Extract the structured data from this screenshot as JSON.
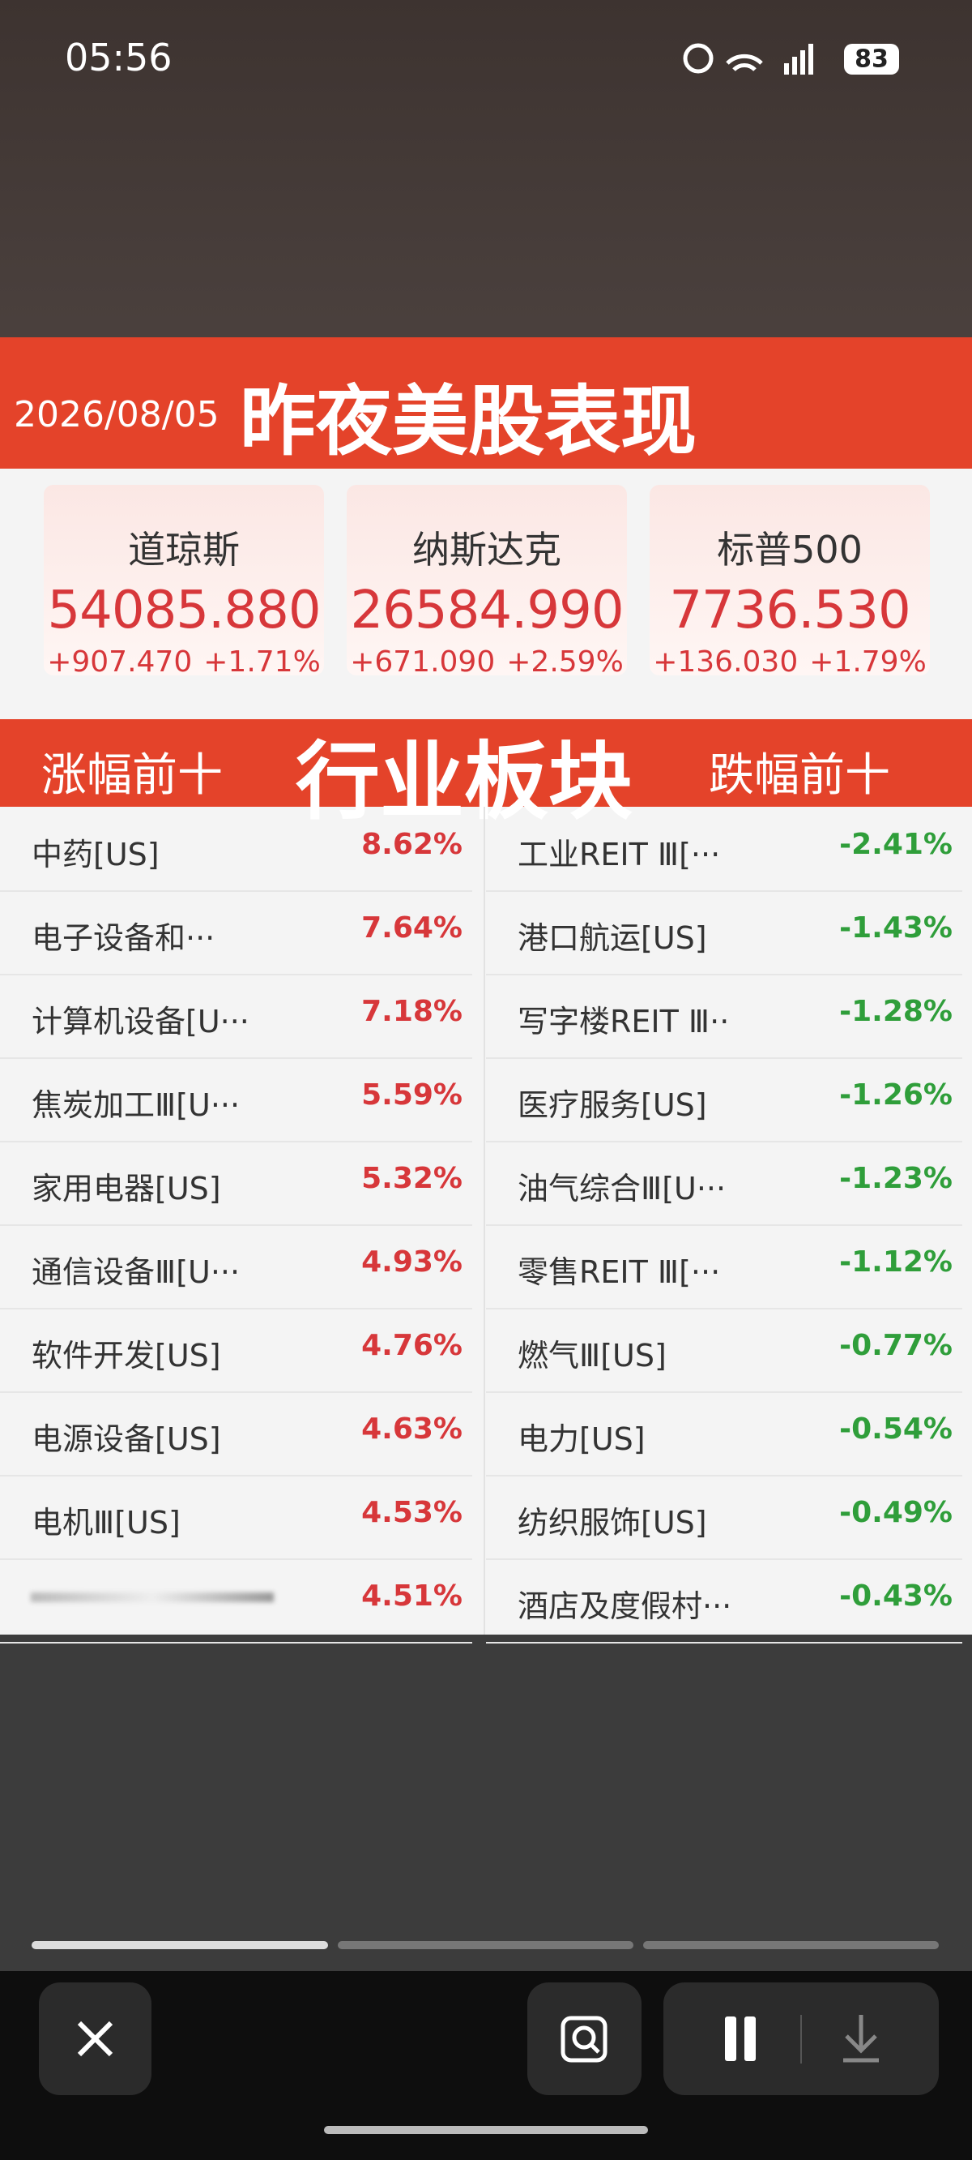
{
  "status": {
    "time": "05:56",
    "battery": "83"
  },
  "header": {
    "date": "2026/08/05",
    "title": "昨夜美股表现"
  },
  "indices": [
    {
      "name": "道琼斯",
      "value": "54085.880",
      "change": "+907.470",
      "pct": "+1.71%"
    },
    {
      "name": "纳斯达克",
      "value": "26584.990",
      "change": "+671.090",
      "pct": "+2.59%"
    },
    {
      "name": "标普500",
      "value": "7736.530",
      "change": "+136.030",
      "pct": "+1.79%"
    }
  ],
  "sector": {
    "left_title": "涨幅前十",
    "title": "行业板块",
    "right_title": "跌幅前十",
    "gainers": [
      {
        "name": "中药[US]",
        "pct": "8.62%"
      },
      {
        "name": "电子设备和···",
        "pct": "7.64%"
      },
      {
        "name": "计算机设备[U···",
        "pct": "7.18%"
      },
      {
        "name": "焦炭加工Ⅲ[U···",
        "pct": "5.59%"
      },
      {
        "name": "家用电器[US]",
        "pct": "5.32%"
      },
      {
        "name": "通信设备Ⅲ[U···",
        "pct": "4.93%"
      },
      {
        "name": "软件开发[US]",
        "pct": "4.76%"
      },
      {
        "name": "电源设备[US]",
        "pct": "4.63%"
      },
      {
        "name": "电机Ⅲ[US]",
        "pct": "4.53%"
      },
      {
        "pct": "4.51%"
      }
    ],
    "losers": [
      {
        "name": "工业REIT Ⅲ[···",
        "pct": "-2.41%"
      },
      {
        "name": "港口航运[US]",
        "pct": "-1.43%"
      },
      {
        "name": "写字楼REIT Ⅲ··",
        "pct": "-1.28%"
      },
      {
        "name": "医疗服务[US]",
        "pct": "-1.26%"
      },
      {
        "name": "油气综合Ⅲ[U···",
        "pct": "-1.23%"
      },
      {
        "name": "零售REIT Ⅲ[···",
        "pct": "-1.12%"
      },
      {
        "name": "燃气Ⅲ[US]",
        "pct": "-0.77%"
      },
      {
        "name": "电力[US]",
        "pct": "-0.54%"
      },
      {
        "name": "纺织服饰[US]",
        "pct": "-0.49%"
      },
      {
        "name": "酒店及度假村···",
        "pct": "-0.43%"
      }
    ]
  }
}
